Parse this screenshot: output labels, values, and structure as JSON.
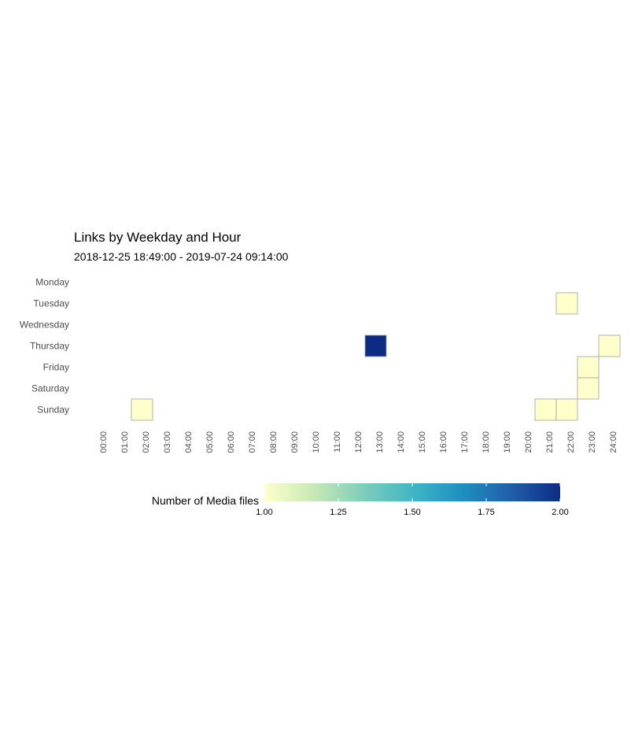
{
  "chart_data": {
    "type": "heatmap",
    "title": "Links by Weekday and Hour",
    "subtitle": "2018-12-25 18:49:00  -  2019-07-24 09:14:00",
    "days": [
      "Monday",
      "Tuesday",
      "Wednesday",
      "Thursday",
      "Friday",
      "Saturday",
      "Sunday"
    ],
    "hours": [
      "00:00",
      "01:00",
      "02:00",
      "03:00",
      "04:00",
      "05:00",
      "06:00",
      "07:00",
      "08:00",
      "09:00",
      "10:00",
      "11:00",
      "12:00",
      "13:00",
      "14:00",
      "15:00",
      "16:00",
      "17:00",
      "18:00",
      "19:00",
      "20:00",
      "21:00",
      "22:00",
      "23:00",
      "24:00"
    ],
    "cells": [
      {
        "day": "Tuesday",
        "hour": "21:00",
        "value": 1
      },
      {
        "day": "Thursday",
        "hour": "12:00",
        "value": 2
      },
      {
        "day": "Thursday",
        "hour": "23:00",
        "value": 1
      },
      {
        "day": "Friday",
        "hour": "22:00",
        "value": 1
      },
      {
        "day": "Saturday",
        "hour": "22:00",
        "value": 1
      },
      {
        "day": "Sunday",
        "hour": "01:00",
        "value": 1
      },
      {
        "day": "Sunday",
        "hour": "20:00",
        "value": 1
      },
      {
        "day": "Sunday",
        "hour": "21:00",
        "value": 1
      }
    ],
    "legend": {
      "title": "Number of Media files",
      "min": 1.0,
      "max": 2.0,
      "ticks": [
        "1.00",
        "1.25",
        "1.50",
        "1.75",
        "2.00"
      ],
      "tick_values": [
        1.0,
        1.25,
        1.5,
        1.75,
        2.0
      ],
      "colors": [
        "#ffffcc",
        "#c7e9b4",
        "#7fcdbb",
        "#41b6c4",
        "#1d91c0",
        "#225ea8",
        "#0c2c84"
      ]
    },
    "grid": false,
    "legend_position": "bottom"
  }
}
